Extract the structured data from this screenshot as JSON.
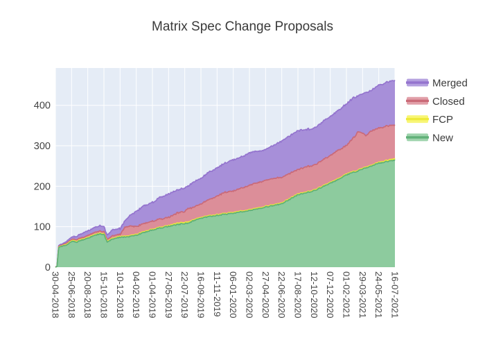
{
  "figure": {
    "background": "#ffffff",
    "plot_background": "#e5ecf6",
    "gridline_color": "#ffffff",
    "tick_label_color": "#444444",
    "title_color": "#3a3a3a"
  },
  "chart_data": {
    "type": "area",
    "stacked": true,
    "title": "Matrix Spec Change Proposals",
    "xlabel": "",
    "ylabel": "",
    "y_ticks": [
      0,
      100,
      200,
      300,
      400
    ],
    "y_range": [
      0,
      492
    ],
    "grid": true,
    "legend_position": "right-top",
    "x_tick_labels": [
      "30-04-2018",
      "25-06-2018",
      "20-08-2018",
      "15-10-2018",
      "10-12-2018",
      "04-02-2019",
      "01-04-2019",
      "27-05-2019",
      "22-07-2019",
      "16-09-2019",
      "11-11-2019",
      "06-01-2020",
      "02-03-2020",
      "27-04-2020",
      "22-06-2020",
      "17-08-2020",
      "12-10-2020",
      "07-12-2020",
      "01-02-2021",
      "29-03-2021",
      "24-05-2021",
      "16-07-2021"
    ],
    "stack_order_bottom_to_top": [
      "New",
      "FCP",
      "Closed",
      "Merged"
    ],
    "series": [
      {
        "name": "New",
        "fill": "#8dcb9e",
        "line": "#5fb077",
        "values": [
          0,
          64,
          72,
          80,
          74,
          79,
          92,
          101,
          108,
          121,
          128,
          133,
          140,
          149,
          157,
          179,
          189,
          207,
          228,
          243,
          257,
          265
        ]
      },
      {
        "name": "FCP",
        "fill": "#f7f45f",
        "line": "#eeea3a",
        "values": [
          0,
          2,
          2,
          2,
          2,
          2,
          2,
          2,
          3,
          2,
          2,
          2,
          2,
          2,
          2,
          2,
          2,
          2,
          2,
          2,
          2,
          3
        ]
      },
      {
        "name": "Closed",
        "fill": "#dc8e99",
        "line": "#ca6a78",
        "values": [
          0,
          3,
          5,
          5,
          5,
          19,
          20,
          20,
          27,
          33,
          46,
          53,
          60,
          64,
          63,
          60,
          61,
          66,
          70,
          87,
          84,
          84
        ]
      },
      {
        "name": "Merged",
        "fill": "#a78fd9",
        "line": "#9474ce",
        "values": [
          0,
          6,
          11,
          13,
          14,
          38,
          46,
          57,
          58,
          63,
          70,
          77,
          80,
          76,
          90,
          96,
          91,
          97,
          103,
          97,
          106,
          111
        ]
      }
    ],
    "detail_points": [
      [
        0,
        0,
        0,
        0,
        0
      ],
      [
        0.1,
        2,
        0,
        1,
        0
      ],
      [
        0.2,
        48,
        1,
        2,
        2
      ],
      [
        0.45,
        52,
        1,
        2,
        3
      ],
      [
        0.7,
        55,
        2,
        3,
        4
      ],
      [
        1,
        64,
        2,
        3,
        6
      ],
      [
        1.3,
        62,
        2,
        4,
        7
      ],
      [
        1.7,
        68,
        2,
        4,
        11
      ],
      [
        2,
        72,
        2,
        5,
        11
      ],
      [
        2.4,
        78,
        2,
        5,
        12
      ],
      [
        2.7,
        82,
        2,
        5,
        13
      ],
      [
        3,
        80,
        2,
        5,
        13
      ],
      [
        3.2,
        63,
        2,
        4,
        11
      ],
      [
        3.5,
        69,
        2,
        6,
        15
      ],
      [
        4,
        74,
        2,
        5,
        14
      ],
      [
        4.3,
        75,
        2,
        22,
        16
      ],
      [
        4.6,
        76,
        2,
        23,
        26
      ],
      [
        5,
        79,
        2,
        19,
        38
      ],
      [
        5.5,
        86,
        2,
        20,
        44
      ],
      [
        6,
        92,
        2,
        20,
        46
      ],
      [
        6.5,
        97,
        2,
        20,
        54
      ],
      [
        7,
        101,
        2,
        20,
        57
      ],
      [
        7.5,
        105,
        3,
        25,
        57
      ],
      [
        8,
        108,
        3,
        27,
        58
      ],
      [
        8.2,
        109,
        3,
        33,
        55
      ],
      [
        8.5,
        114,
        2,
        31,
        62
      ],
      [
        9,
        121,
        2,
        33,
        63
      ],
      [
        9.5,
        125,
        2,
        40,
        68
      ],
      [
        10,
        128,
        2,
        46,
        70
      ],
      [
        10.5,
        131,
        2,
        52,
        72
      ],
      [
        11,
        133,
        2,
        53,
        77
      ],
      [
        11.5,
        137,
        2,
        57,
        77
      ],
      [
        12,
        140,
        2,
        60,
        80
      ],
      [
        12.5,
        144,
        2,
        63,
        78
      ],
      [
        13,
        149,
        2,
        64,
        76
      ],
      [
        13.5,
        152,
        2,
        65,
        82
      ],
      [
        14,
        157,
        2,
        63,
        90
      ],
      [
        14.5,
        168,
        2,
        62,
        93
      ],
      [
        15,
        179,
        2,
        60,
        96
      ],
      [
        15.5,
        184,
        2,
        62,
        92
      ],
      [
        16,
        189,
        2,
        61,
        91
      ],
      [
        16.5,
        198,
        2,
        64,
        94
      ],
      [
        17,
        207,
        2,
        66,
        97
      ],
      [
        17.5,
        217,
        2,
        70,
        98
      ],
      [
        18,
        228,
        2,
        70,
        103
      ],
      [
        18.5,
        235,
        2,
        85,
        98
      ],
      [
        18.7,
        237,
        2,
        95,
        88
      ],
      [
        19,
        243,
        2,
        87,
        97
      ],
      [
        19.2,
        245,
        2,
        78,
        106
      ],
      [
        19.5,
        249,
        2,
        85,
        100
      ],
      [
        20,
        257,
        2,
        84,
        106
      ],
      [
        20.5,
        261,
        3,
        85,
        108
      ],
      [
        21,
        265,
        3,
        84,
        111
      ]
    ]
  },
  "legend": {
    "items": [
      {
        "label": "Merged",
        "fill": "#a78fd9",
        "line": "#9474ce"
      },
      {
        "label": "Closed",
        "fill": "#dc8e99",
        "line": "#ca6a78"
      },
      {
        "label": "FCP",
        "fill": "#f7f45f",
        "line": "#eeea3a"
      },
      {
        "label": "New",
        "fill": "#8dcb9e",
        "line": "#5fb077"
      }
    ]
  }
}
